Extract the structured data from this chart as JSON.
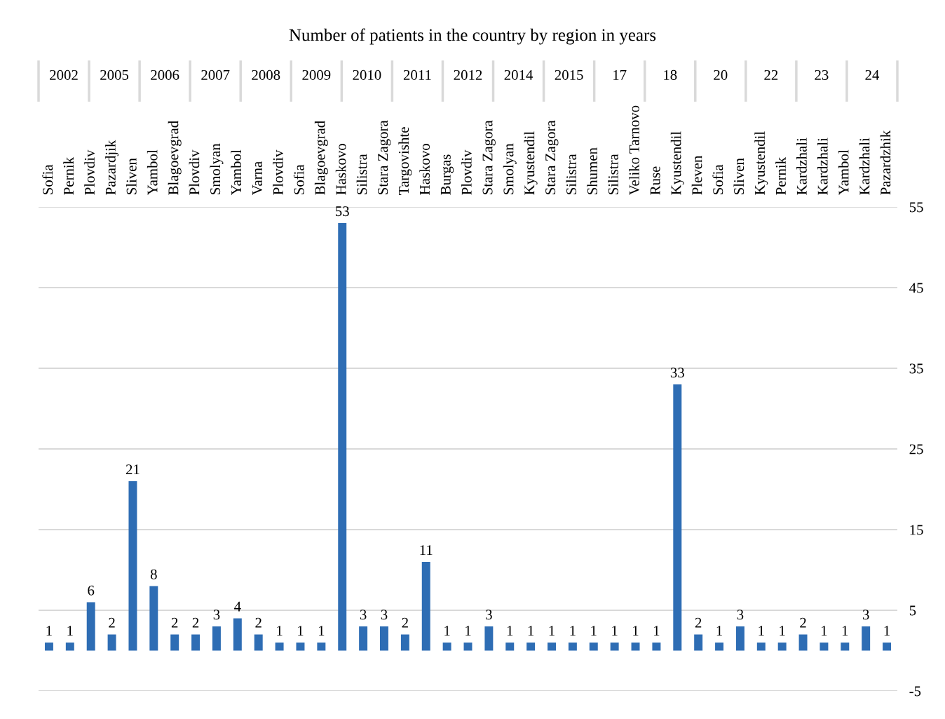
{
  "chart_data": {
    "type": "bar",
    "title": "Number of patients in the country by region in years",
    "categories": [
      "Sofia",
      "Pernik",
      "Plovdiv",
      "Pazardjik",
      "Sliven",
      "Yambol",
      "Blagoevgrad",
      "Plovdiv",
      "Smolyan",
      "Yambol",
      "Varna",
      "Plovdiv",
      "Sofia",
      "Blagoevgrad",
      "Haskovo",
      "Silistra",
      "Stara Zagora",
      "Targovishte",
      "Haskovo",
      "Burgas",
      "Plovdiv",
      "Stara Zagora",
      "Smolyan",
      "Kyustendil",
      "Stara Zagora",
      "Silistra",
      "Shumen",
      "Silistra",
      "Veliko Tarnovo",
      "Ruse",
      "Kyustendil",
      "Pleven",
      "Sofia",
      "Sliven",
      "Kyustendil",
      "Pernik",
      "Kardzhali",
      "Kardzhali",
      "Yambol",
      "Kardzhali",
      "Pazardzhik"
    ],
    "values": [
      1,
      1,
      6,
      2,
      21,
      8,
      2,
      2,
      3,
      4,
      2,
      1,
      1,
      1,
      53,
      3,
      3,
      2,
      11,
      1,
      1,
      3,
      1,
      1,
      1,
      1,
      1,
      1,
      1,
      1,
      33,
      2,
      1,
      3,
      1,
      1,
      2,
      1,
      1,
      3,
      1
    ],
    "color": "#2e6db4",
    "data_labels": true,
    "ylim": [
      -5,
      55
    ],
    "yticks": [
      -5,
      5,
      15,
      25,
      35,
      45,
      55
    ],
    "grid": "y",
    "annotations": [
      "2002",
      "2005",
      "2006",
      "2007",
      "2008",
      "2009",
      "2010",
      "2011",
      "2012",
      "2014",
      "2015",
      "17",
      "18",
      "20",
      "22",
      "23",
      "24"
    ]
  }
}
